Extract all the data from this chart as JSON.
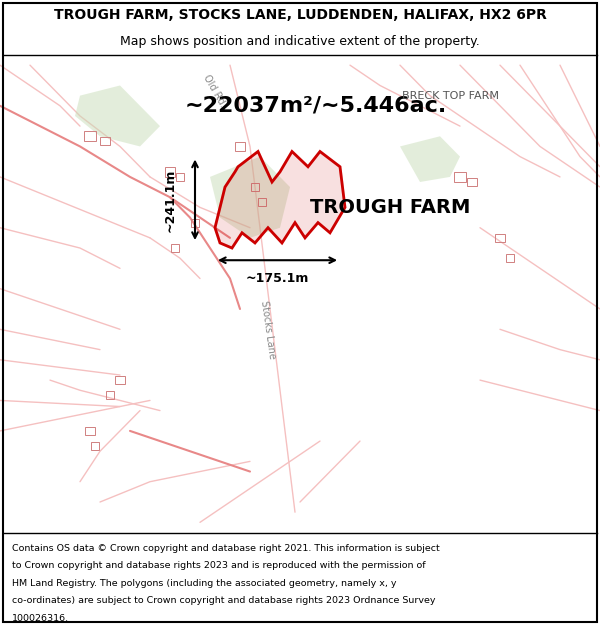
{
  "title_line1": "TROUGH FARM, STOCKS LANE, LUDDENDEN, HALIFAX, HX2 6PR",
  "title_line2": "Map shows position and indicative extent of the property.",
  "area_text": "~22037m²/~5.446ac.",
  "label_farm": "TROUGH FARM",
  "dim_horizontal": "~175.1m",
  "dim_vertical": "~241.1m",
  "label_top_right": "BRECK TOP FARM",
  "footer_lines": [
    "Contains OS data © Crown copyright and database right 2021. This information is subject",
    "to Crown copyright and database rights 2023 and is reproduced with the permission of",
    "HM Land Registry. The polygons (including the associated geometry, namely x, y",
    "co-ordinates) are subject to Crown copyright and database rights 2023 Ordnance Survey",
    "100026316."
  ],
  "map_bg": "#f5f0ea",
  "thin_road_color": "#f5c0c0",
  "medium_road_color": "#e88888",
  "green_fill": "#c8ddb8",
  "property_color": "#cc0000",
  "header_bg": "#ffffff",
  "footer_bg": "#ffffff"
}
